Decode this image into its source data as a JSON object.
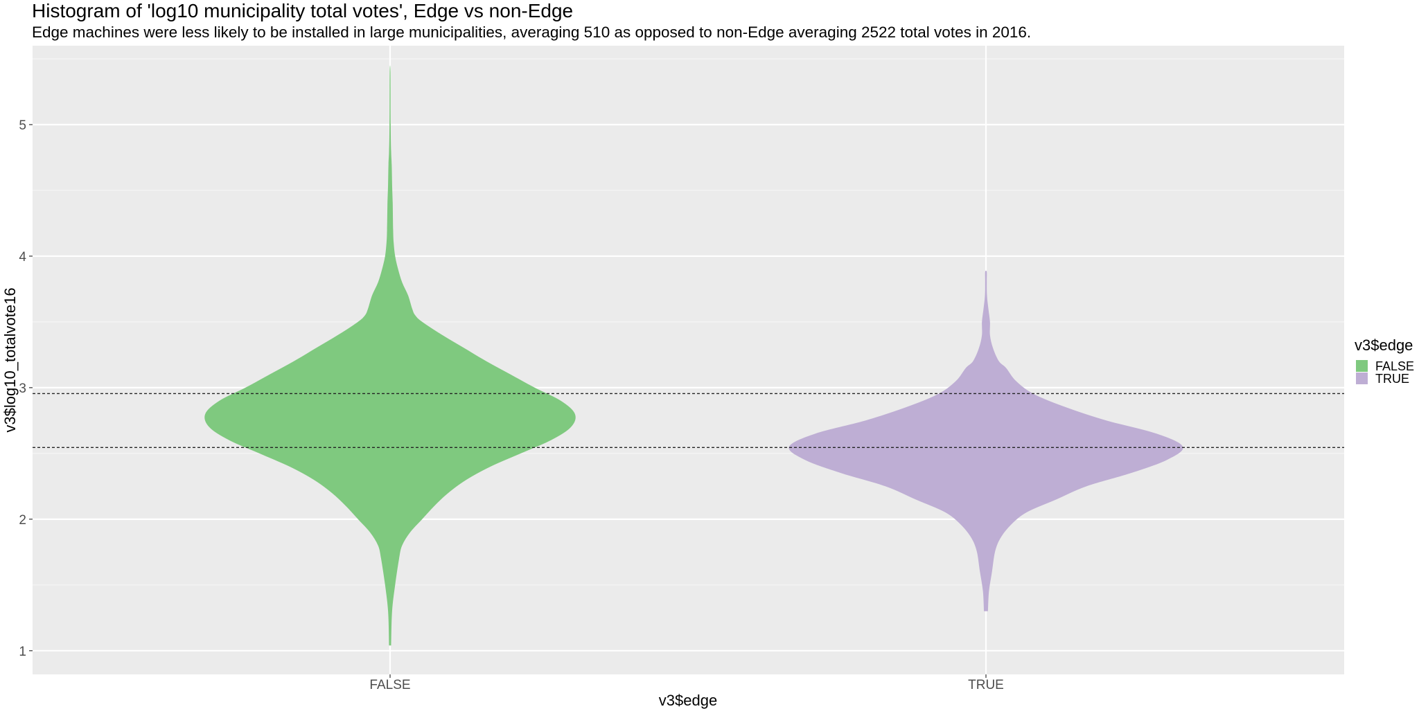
{
  "chart_data": {
    "type": "violin",
    "title": "Histogram of 'log10 municipality total votes', Edge vs non-Edge",
    "subtitle": "Edge machines were less likely to be installed in large municipalities, averaging 510  as opposed to non-Edge averaging 2522 total votes in 2016.",
    "xlabel": "v3$edge",
    "ylabel": "v3$log10_totalvote16",
    "categories": [
      "FALSE",
      "TRUE"
    ],
    "ylim": [
      0.82,
      5.6
    ],
    "yticks": [
      1,
      2,
      3,
      4,
      5
    ],
    "grid": true,
    "legend": {
      "title": "v3$edge",
      "position": "right",
      "entries": [
        {
          "label": "FALSE",
          "color": "#7fc97f"
        },
        {
          "label": "TRUE",
          "color": "#beaed4"
        }
      ]
    },
    "hlines": [
      2.955,
      2.545
    ],
    "series": [
      {
        "category": "FALSE",
        "color": "#7fc97f",
        "ymin": 1.04,
        "ymax": 5.4,
        "profile": [
          [
            1.04,
            0.005
          ],
          [
            1.3,
            0.01
          ],
          [
            1.5,
            0.025
          ],
          [
            1.7,
            0.045
          ],
          [
            1.8,
            0.06
          ],
          [
            1.9,
            0.1
          ],
          [
            2.0,
            0.16
          ],
          [
            2.1,
            0.22
          ],
          [
            2.2,
            0.29
          ],
          [
            2.3,
            0.38
          ],
          [
            2.4,
            0.5
          ],
          [
            2.5,
            0.65
          ],
          [
            2.6,
            0.8
          ],
          [
            2.7,
            0.9
          ],
          [
            2.8,
            0.92
          ],
          [
            2.9,
            0.85
          ],
          [
            3.0,
            0.72
          ],
          [
            3.1,
            0.6
          ],
          [
            3.2,
            0.48
          ],
          [
            3.3,
            0.37
          ],
          [
            3.4,
            0.26
          ],
          [
            3.5,
            0.16
          ],
          [
            3.55,
            0.125
          ],
          [
            3.6,
            0.11
          ],
          [
            3.7,
            0.09
          ],
          [
            3.8,
            0.06
          ],
          [
            3.9,
            0.04
          ],
          [
            4.0,
            0.025
          ],
          [
            4.1,
            0.018
          ],
          [
            4.2,
            0.015
          ],
          [
            4.4,
            0.013
          ],
          [
            4.55,
            0.01
          ],
          [
            4.7,
            0.008
          ],
          [
            4.8,
            0.005
          ],
          [
            5.0,
            0.003
          ],
          [
            5.4,
            0.002
          ]
        ]
      },
      {
        "category": "TRUE",
        "color": "#beaed4",
        "ymin": 1.3,
        "ymax": 3.88,
        "profile": [
          [
            1.3,
            0.01
          ],
          [
            1.45,
            0.015
          ],
          [
            1.6,
            0.03
          ],
          [
            1.75,
            0.045
          ],
          [
            1.85,
            0.07
          ],
          [
            1.95,
            0.12
          ],
          [
            2.05,
            0.2
          ],
          [
            2.15,
            0.35
          ],
          [
            2.25,
            0.5
          ],
          [
            2.35,
            0.72
          ],
          [
            2.45,
            0.9
          ],
          [
            2.55,
            0.98
          ],
          [
            2.65,
            0.85
          ],
          [
            2.75,
            0.6
          ],
          [
            2.85,
            0.4
          ],
          [
            2.95,
            0.24
          ],
          [
            3.05,
            0.15
          ],
          [
            3.15,
            0.1
          ],
          [
            3.2,
            0.065
          ],
          [
            3.3,
            0.035
          ],
          [
            3.4,
            0.02
          ],
          [
            3.5,
            0.02
          ],
          [
            3.6,
            0.012
          ],
          [
            3.7,
            0.005
          ],
          [
            3.8,
            0.004
          ],
          [
            3.88,
            0.004
          ]
        ]
      }
    ]
  }
}
